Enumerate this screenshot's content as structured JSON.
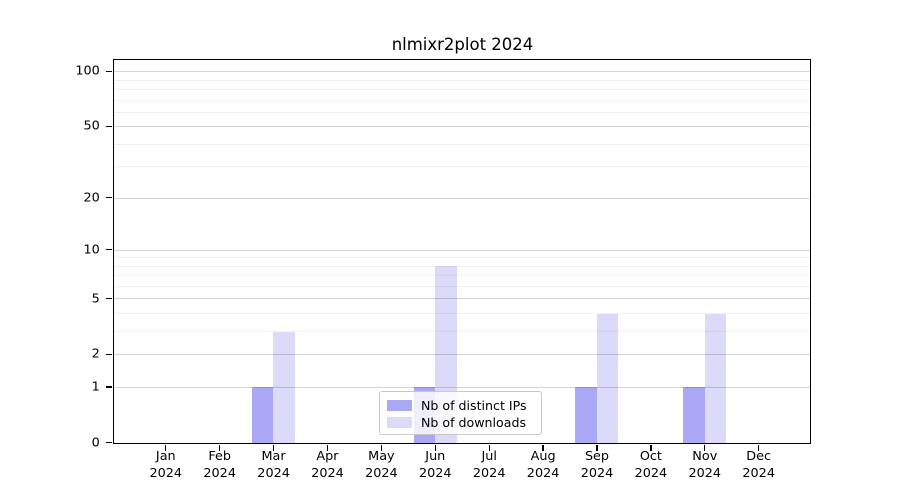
{
  "title": "nlmixr2plot 2024",
  "chart_data": {
    "type": "bar",
    "title": "nlmixr2plot 2024",
    "xlabel": "",
    "ylabel": "",
    "yscale": "log1p",
    "ylim": [
      0,
      115
    ],
    "grid": true,
    "legend_position": "bottom-center",
    "categories": [
      {
        "month": "Jan",
        "year": "2024"
      },
      {
        "month": "Feb",
        "year": "2024"
      },
      {
        "month": "Mar",
        "year": "2024"
      },
      {
        "month": "Apr",
        "year": "2024"
      },
      {
        "month": "May",
        "year": "2024"
      },
      {
        "month": "Jun",
        "year": "2024"
      },
      {
        "month": "Jul",
        "year": "2024"
      },
      {
        "month": "Aug",
        "year": "2024"
      },
      {
        "month": "Sep",
        "year": "2024"
      },
      {
        "month": "Oct",
        "year": "2024"
      },
      {
        "month": "Nov",
        "year": "2024"
      },
      {
        "month": "Dec",
        "year": "2024"
      }
    ],
    "series": [
      {
        "name": "Nb of distinct IPs",
        "color": "#a8a8f5",
        "values": [
          0,
          0,
          1,
          0,
          0,
          1,
          0,
          0,
          1,
          0,
          1,
          0
        ]
      },
      {
        "name": "Nb of downloads",
        "color": "#dbdbf9",
        "values": [
          0,
          0,
          3,
          0,
          0,
          8,
          0,
          0,
          4,
          0,
          4,
          0
        ]
      }
    ],
    "y_axis": {
      "labeled_ticks": [
        0,
        1,
        2,
        5,
        10,
        20,
        50,
        100
      ],
      "minor_gridlines": [
        3,
        4,
        6,
        7,
        8,
        9,
        30,
        40,
        60,
        70,
        80,
        90
      ]
    }
  },
  "colors": {
    "background": "#ffffff",
    "axis": "#000000",
    "bar_distinct_ips": "#a8a8f5",
    "bar_downloads": "#dbdbf9",
    "grid_major": "rgba(0,0,0,0.165)",
    "grid_minor": "rgba(0,0,0,0.058)",
    "legend_border": "#c8c8c8"
  }
}
